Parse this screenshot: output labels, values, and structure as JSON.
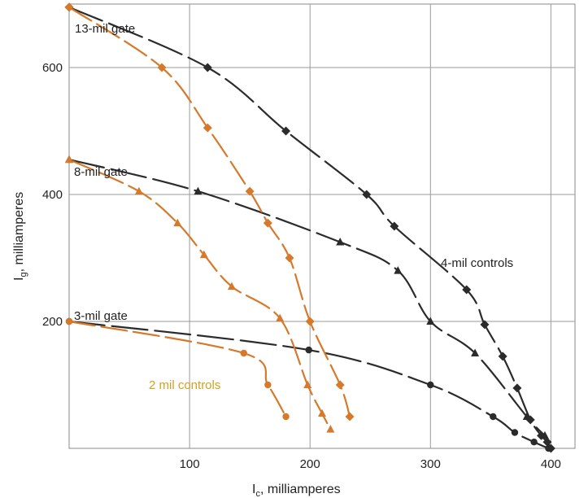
{
  "chart_data": {
    "type": "scatter",
    "title": "",
    "xlabel": "I",
    "xlabel_sub": "c",
    "xlabel_suffix": ", milliamperes",
    "ylabel": "I",
    "ylabel_sub": "g",
    "ylabel_suffix": ", milliamperes",
    "xlim": [
      0,
      420
    ],
    "ylim": [
      0,
      700
    ],
    "xticks": [
      100,
      200,
      300,
      400
    ],
    "yticks": [
      200,
      400,
      600
    ],
    "grid": true,
    "annotations": {
      "g13": "13-mil gate",
      "g8": "8-mil gate",
      "g3": "3-mil gate",
      "c4": "4-mil controls",
      "c2": "2 mil controls"
    },
    "colors": {
      "dark": "#2b2b2b",
      "orange": "#d6792a",
      "gold": "#d4a020"
    },
    "series": [
      {
        "group": "4-mil controls",
        "color": "dark",
        "marker": "diamond",
        "x": [
          0,
          115,
          180,
          247,
          270,
          330,
          345,
          360,
          372,
          383,
          392,
          397,
          400
        ],
        "y": [
          695,
          600,
          500,
          400,
          350,
          250,
          195,
          145,
          95,
          45,
          20,
          10,
          0
        ]
      },
      {
        "group": "4-mil controls",
        "color": "dark",
        "marker": "triangle",
        "x": [
          0,
          107,
          225,
          273,
          300,
          337,
          380,
          395
        ],
        "y": [
          455,
          405,
          325,
          280,
          200,
          150,
          50,
          20
        ]
      },
      {
        "group": "4-mil controls",
        "color": "dark",
        "marker": "circle",
        "x": [
          0,
          199,
          300,
          352,
          370,
          386,
          398
        ],
        "y": [
          200,
          155,
          100,
          50,
          25,
          10,
          0
        ]
      },
      {
        "group": "2 mil controls",
        "color": "orange",
        "marker": "diamond",
        "x": [
          0,
          77,
          115,
          150,
          165,
          183,
          200,
          225,
          233
        ],
        "y": [
          695,
          600,
          505,
          405,
          355,
          300,
          200,
          100,
          50
        ]
      },
      {
        "group": "2 mil controls",
        "color": "orange",
        "marker": "triangle",
        "x": [
          0,
          58,
          90,
          112,
          135,
          175,
          198,
          210,
          217
        ],
        "y": [
          455,
          405,
          355,
          305,
          255,
          205,
          100,
          55,
          30
        ]
      },
      {
        "group": "2 mil controls",
        "color": "orange",
        "marker": "circle",
        "x": [
          0,
          145,
          165,
          180
        ],
        "y": [
          200,
          150,
          100,
          50
        ]
      }
    ]
  }
}
